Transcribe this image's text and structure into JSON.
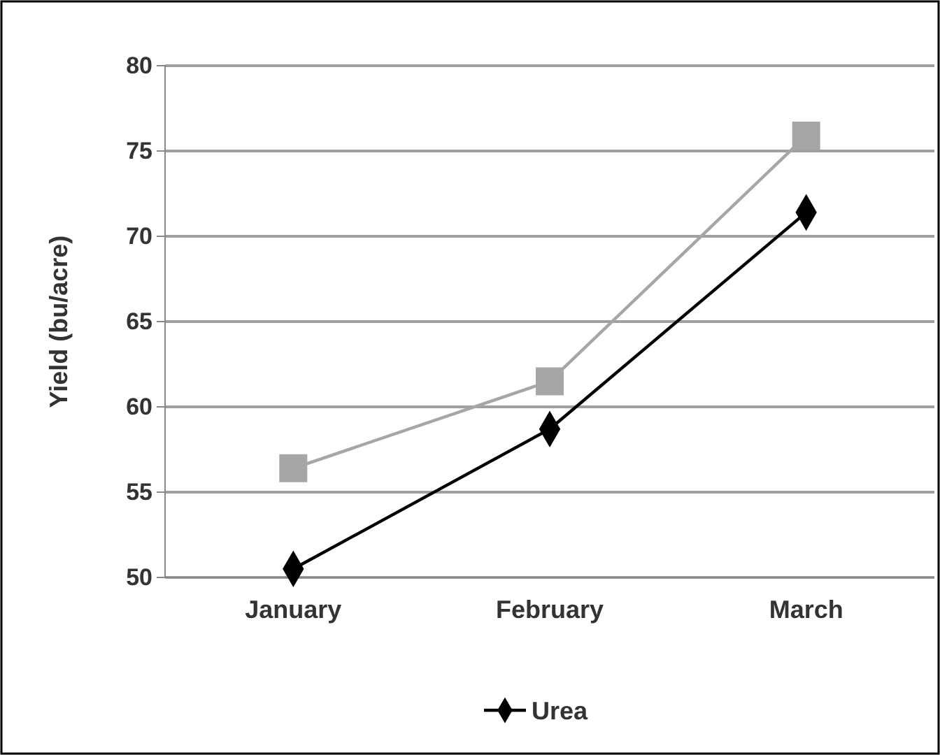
{
  "chart_data": {
    "type": "line",
    "ylabel": "Yield (bu/acre)",
    "categories": [
      "January",
      "February",
      "March"
    ],
    "series": [
      {
        "name": "Urea",
        "color": "#000000",
        "marker": "diamond",
        "values": [
          50.5,
          58.7,
          71.4
        ]
      },
      {
        "color": "#a6a6a6",
        "marker": "square",
        "values": [
          56.4,
          61.5,
          75.9
        ]
      }
    ],
    "ylim": [
      50,
      80
    ],
    "yticks": [
      50,
      55,
      60,
      65,
      70,
      75,
      80
    ],
    "grid": "y",
    "legend": "bottom"
  }
}
